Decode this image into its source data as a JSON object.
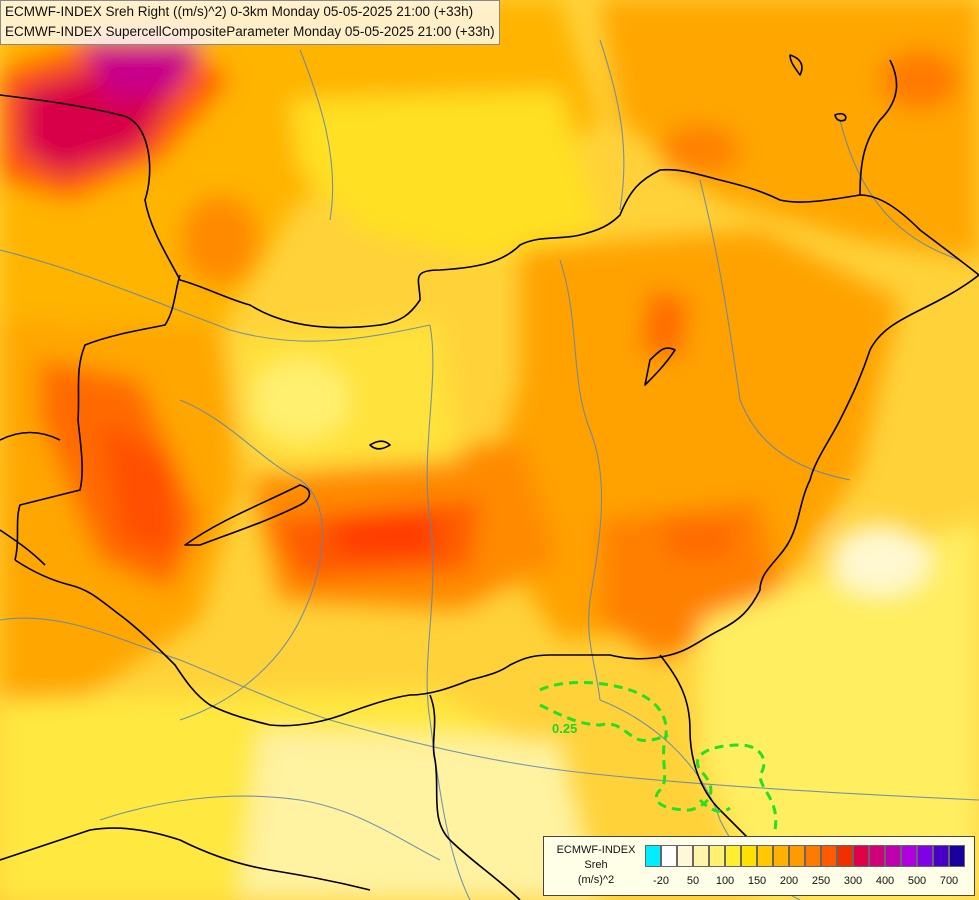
{
  "header": {
    "line1": "ECMWF-INDEX Sreh Right ((m/s)^2) 0-3km Monday 05-05-2025 21:00 (+33h)",
    "line2": "ECMWF-INDEX SupercellCompositeParameter Monday 05-05-2025 21:00 (+33h)"
  },
  "contour": {
    "label": "0.25",
    "color": "#22e022"
  },
  "legend": {
    "title_line1": "ECMWF-INDEX",
    "title_line2": "Sreh",
    "title_line3": "(m/s)^2",
    "colors": [
      "#00eeff",
      "#ffffff",
      "#fff8d8",
      "#fff4a8",
      "#fff070",
      "#ffee30",
      "#ffe000",
      "#ffc800",
      "#ffb000",
      "#ff9a00",
      "#ff7800",
      "#ff5a00",
      "#f03000",
      "#e0004a",
      "#d0007a",
      "#c000b0",
      "#b000e0",
      "#8000e8",
      "#4800c8",
      "#1800a0"
    ],
    "ticks": [
      "-20",
      "50",
      "100",
      "150",
      "200",
      "250",
      "300",
      "400",
      "500",
      "700"
    ]
  }
}
